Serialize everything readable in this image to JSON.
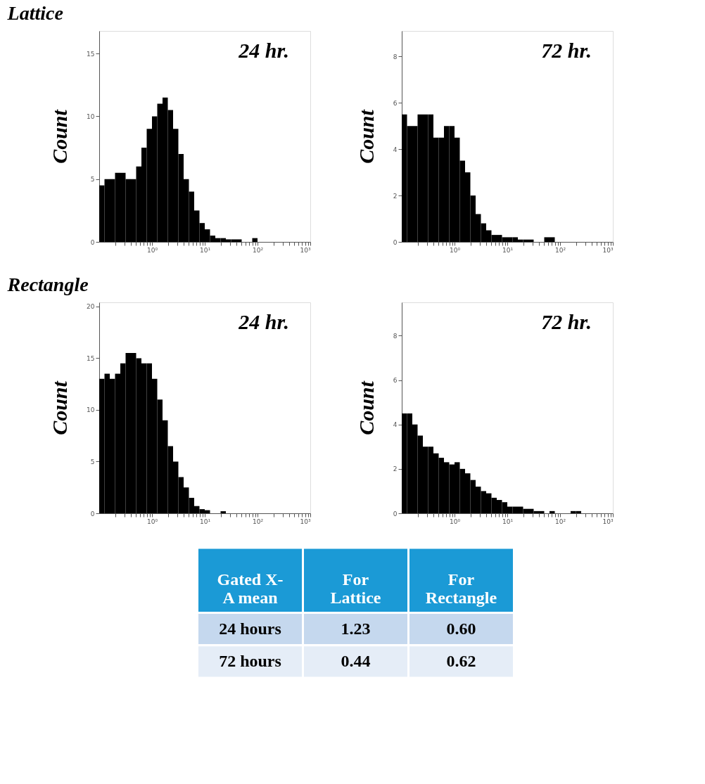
{
  "chart_data": [
    {
      "type": "histogram",
      "title": "Lattice",
      "ylabel": "Count",
      "annotations": [
        "24 hr."
      ],
      "color": "#000000",
      "log": "x",
      "grid": false,
      "xlim": [
        0.1,
        1000
      ],
      "ylim": [
        0,
        16.8
      ],
      "yticks": [
        0,
        5,
        10,
        15
      ],
      "xticks": [
        {
          "value": 0.2,
          "label": null
        },
        {
          "value": 0.3,
          "label": null
        },
        {
          "value": 0.4,
          "label": null
        },
        {
          "value": 0.5,
          "label": null
        },
        {
          "value": 0.6,
          "label": null
        },
        {
          "value": 0.7,
          "label": null
        },
        {
          "value": 0.8,
          "label": null
        },
        {
          "value": 0.9,
          "label": null
        },
        {
          "value": 1,
          "label": "10⁰"
        },
        {
          "value": 2,
          "label": null
        },
        {
          "value": 3,
          "label": null
        },
        {
          "value": 4,
          "label": null
        },
        {
          "value": 5,
          "label": null
        },
        {
          "value": 6,
          "label": null
        },
        {
          "value": 7,
          "label": null
        },
        {
          "value": 8,
          "label": null
        },
        {
          "value": 9,
          "label": null
        },
        {
          "value": 10,
          "label": "10¹"
        },
        {
          "value": 20,
          "label": null
        },
        {
          "value": 30,
          "label": null
        },
        {
          "value": 40,
          "label": null
        },
        {
          "value": 50,
          "label": null
        },
        {
          "value": 60,
          "label": null
        },
        {
          "value": 70,
          "label": null
        },
        {
          "value": 80,
          "label": null
        },
        {
          "value": 90,
          "label": null
        },
        {
          "value": 100,
          "label": "10²"
        },
        {
          "value": 200,
          "label": null
        },
        {
          "value": 300,
          "label": null
        },
        {
          "value": 400,
          "label": null
        },
        {
          "value": 500,
          "label": null
        },
        {
          "value": 600,
          "label": null
        },
        {
          "value": 700,
          "label": null
        },
        {
          "value": 800,
          "label": null
        },
        {
          "value": 900,
          "label": null
        },
        {
          "value": 1000,
          "label": "10³"
        }
      ],
      "bins": [
        0.1,
        0.1259,
        0.1585,
        0.1995,
        0.2512,
        0.3162,
        0.3981,
        0.5012,
        0.631,
        0.7943,
        1,
        1.259,
        1.585,
        1.995,
        2.512,
        3.162,
        3.981,
        5.012,
        6.31,
        7.943,
        10,
        12.59,
        15.85,
        19.95,
        25.12,
        31.62,
        39.81,
        50.12,
        63.1,
        79.43,
        100,
        125.9,
        158.5,
        199.5,
        251.2,
        316.2,
        398.1,
        501.2,
        631,
        794.3,
        1000
      ],
      "values": [
        4.5,
        5,
        5,
        5.5,
        5.5,
        5,
        5,
        6,
        7.5,
        9,
        10,
        11,
        11.5,
        10.5,
        9,
        7,
        5,
        4,
        2.5,
        1.5,
        1,
        0.5,
        0.3,
        0.3,
        0.2,
        0.2,
        0.2,
        0,
        0,
        0.3,
        0,
        0,
        0,
        0,
        0,
        0,
        0,
        0,
        0,
        0
      ]
    },
    {
      "type": "histogram",
      "ylabel": "Count",
      "annotations": [
        "72 hr."
      ],
      "color": "#000000",
      "log": "x",
      "grid": false,
      "xlim": [
        0.1,
        1000
      ],
      "ylim": [
        0,
        9.1
      ],
      "yticks": [
        0,
        2,
        4,
        6,
        8
      ],
      "xticks": [
        {
          "value": 0.2,
          "label": null
        },
        {
          "value": 0.3,
          "label": null
        },
        {
          "value": 0.4,
          "label": null
        },
        {
          "value": 0.5,
          "label": null
        },
        {
          "value": 0.6,
          "label": null
        },
        {
          "value": 0.7,
          "label": null
        },
        {
          "value": 0.8,
          "label": null
        },
        {
          "value": 0.9,
          "label": null
        },
        {
          "value": 1,
          "label": "10⁰"
        },
        {
          "value": 2,
          "label": null
        },
        {
          "value": 3,
          "label": null
        },
        {
          "value": 4,
          "label": null
        },
        {
          "value": 5,
          "label": null
        },
        {
          "value": 6,
          "label": null
        },
        {
          "value": 7,
          "label": null
        },
        {
          "value": 8,
          "label": null
        },
        {
          "value": 9,
          "label": null
        },
        {
          "value": 10,
          "label": "10¹"
        },
        {
          "value": 20,
          "label": null
        },
        {
          "value": 30,
          "label": null
        },
        {
          "value": 40,
          "label": null
        },
        {
          "value": 50,
          "label": null
        },
        {
          "value": 60,
          "label": null
        },
        {
          "value": 70,
          "label": null
        },
        {
          "value": 80,
          "label": null
        },
        {
          "value": 90,
          "label": null
        },
        {
          "value": 100,
          "label": "10²"
        },
        {
          "value": 200,
          "label": null
        },
        {
          "value": 300,
          "label": null
        },
        {
          "value": 400,
          "label": null
        },
        {
          "value": 500,
          "label": null
        },
        {
          "value": 600,
          "label": null
        },
        {
          "value": 700,
          "label": null
        },
        {
          "value": 800,
          "label": null
        },
        {
          "value": 900,
          "label": null
        },
        {
          "value": 1000,
          "label": "10³"
        }
      ],
      "bins": [
        0.1,
        0.1259,
        0.1585,
        0.1995,
        0.2512,
        0.3162,
        0.3981,
        0.5012,
        0.631,
        0.7943,
        1,
        1.259,
        1.585,
        1.995,
        2.512,
        3.162,
        3.981,
        5.012,
        6.31,
        7.943,
        10,
        12.59,
        15.85,
        19.95,
        25.12,
        31.62,
        39.81,
        50.12,
        63.1,
        79.43,
        100,
        125.9,
        158.5,
        199.5,
        251.2,
        316.2,
        398.1,
        501.2,
        631,
        794.3,
        1000
      ],
      "values": [
        5.5,
        5,
        5,
        5.5,
        5.5,
        5.5,
        4.5,
        4.5,
        5,
        5,
        4.5,
        3.5,
        3,
        2,
        1.2,
        0.8,
        0.5,
        0.3,
        0.3,
        0.2,
        0.2,
        0.2,
        0.1,
        0.1,
        0.1,
        0,
        0,
        0.2,
        0.2,
        0,
        0,
        0,
        0,
        0,
        0,
        0,
        0,
        0,
        0,
        0
      ]
    },
    {
      "type": "histogram",
      "title": "Rectangle",
      "ylabel": "Count",
      "annotations": [
        "24 hr."
      ],
      "color": "#000000",
      "log": "x",
      "grid": false,
      "xlim": [
        0.1,
        1000
      ],
      "ylim": [
        0,
        20.4
      ],
      "yticks": [
        0,
        5,
        10,
        15,
        20
      ],
      "xticks": [
        {
          "value": 0.2,
          "label": null
        },
        {
          "value": 0.3,
          "label": null
        },
        {
          "value": 0.4,
          "label": null
        },
        {
          "value": 0.5,
          "label": null
        },
        {
          "value": 0.6,
          "label": null
        },
        {
          "value": 0.7,
          "label": null
        },
        {
          "value": 0.8,
          "label": null
        },
        {
          "value": 0.9,
          "label": null
        },
        {
          "value": 1,
          "label": "10⁰"
        },
        {
          "value": 2,
          "label": null
        },
        {
          "value": 3,
          "label": null
        },
        {
          "value": 4,
          "label": null
        },
        {
          "value": 5,
          "label": null
        },
        {
          "value": 6,
          "label": null
        },
        {
          "value": 7,
          "label": null
        },
        {
          "value": 8,
          "label": null
        },
        {
          "value": 9,
          "label": null
        },
        {
          "value": 10,
          "label": "10¹"
        },
        {
          "value": 20,
          "label": null
        },
        {
          "value": 30,
          "label": null
        },
        {
          "value": 40,
          "label": null
        },
        {
          "value": 50,
          "label": null
        },
        {
          "value": 60,
          "label": null
        },
        {
          "value": 70,
          "label": null
        },
        {
          "value": 80,
          "label": null
        },
        {
          "value": 90,
          "label": null
        },
        {
          "value": 100,
          "label": "10²"
        },
        {
          "value": 200,
          "label": null
        },
        {
          "value": 300,
          "label": null
        },
        {
          "value": 400,
          "label": null
        },
        {
          "value": 500,
          "label": null
        },
        {
          "value": 600,
          "label": null
        },
        {
          "value": 700,
          "label": null
        },
        {
          "value": 800,
          "label": null
        },
        {
          "value": 900,
          "label": null
        },
        {
          "value": 1000,
          "label": "10³"
        }
      ],
      "bins": [
        0.1,
        0.1259,
        0.1585,
        0.1995,
        0.2512,
        0.3162,
        0.3981,
        0.5012,
        0.631,
        0.7943,
        1,
        1.259,
        1.585,
        1.995,
        2.512,
        3.162,
        3.981,
        5.012,
        6.31,
        7.943,
        10,
        12.59,
        15.85,
        19.95,
        25.12,
        31.62,
        39.81,
        50.12,
        63.1,
        79.43,
        100,
        125.9,
        158.5,
        199.5,
        251.2,
        316.2,
        398.1,
        501.2,
        631,
        794.3,
        1000
      ],
      "values": [
        13,
        13.5,
        13,
        13.5,
        14.5,
        15.5,
        15.5,
        15,
        14.5,
        14.5,
        13,
        11,
        9,
        6.5,
        5,
        3.5,
        2.5,
        1.5,
        0.7,
        0.4,
        0.3,
        0,
        0,
        0.2,
        0,
        0,
        0,
        0,
        0,
        0,
        0,
        0,
        0,
        0,
        0,
        0,
        0,
        0,
        0,
        0
      ]
    },
    {
      "type": "histogram",
      "ylabel": "Count",
      "annotations": [
        "72 hr."
      ],
      "color": "#000000",
      "log": "x",
      "grid": false,
      "xlim": [
        0.1,
        1000
      ],
      "ylim": [
        0,
        9.5
      ],
      "yticks": [
        0,
        2,
        4,
        6,
        8
      ],
      "xticks": [
        {
          "value": 0.2,
          "label": null
        },
        {
          "value": 0.3,
          "label": null
        },
        {
          "value": 0.4,
          "label": null
        },
        {
          "value": 0.5,
          "label": null
        },
        {
          "value": 0.6,
          "label": null
        },
        {
          "value": 0.7,
          "label": null
        },
        {
          "value": 0.8,
          "label": null
        },
        {
          "value": 0.9,
          "label": null
        },
        {
          "value": 1,
          "label": "10⁰"
        },
        {
          "value": 2,
          "label": null
        },
        {
          "value": 3,
          "label": null
        },
        {
          "value": 4,
          "label": null
        },
        {
          "value": 5,
          "label": null
        },
        {
          "value": 6,
          "label": null
        },
        {
          "value": 7,
          "label": null
        },
        {
          "value": 8,
          "label": null
        },
        {
          "value": 9,
          "label": null
        },
        {
          "value": 10,
          "label": "10¹"
        },
        {
          "value": 20,
          "label": null
        },
        {
          "value": 30,
          "label": null
        },
        {
          "value": 40,
          "label": null
        },
        {
          "value": 50,
          "label": null
        },
        {
          "value": 60,
          "label": null
        },
        {
          "value": 70,
          "label": null
        },
        {
          "value": 80,
          "label": null
        },
        {
          "value": 90,
          "label": null
        },
        {
          "value": 100,
          "label": "10²"
        },
        {
          "value": 200,
          "label": null
        },
        {
          "value": 300,
          "label": null
        },
        {
          "value": 400,
          "label": null
        },
        {
          "value": 500,
          "label": null
        },
        {
          "value": 600,
          "label": null
        },
        {
          "value": 700,
          "label": null
        },
        {
          "value": 800,
          "label": null
        },
        {
          "value": 900,
          "label": null
        },
        {
          "value": 1000,
          "label": "10³"
        }
      ],
      "bins": [
        0.1,
        0.1259,
        0.1585,
        0.1995,
        0.2512,
        0.3162,
        0.3981,
        0.5012,
        0.631,
        0.7943,
        1,
        1.259,
        1.585,
        1.995,
        2.512,
        3.162,
        3.981,
        5.012,
        6.31,
        7.943,
        10,
        12.59,
        15.85,
        19.95,
        25.12,
        31.62,
        39.81,
        50.12,
        63.1,
        79.43,
        100,
        125.9,
        158.5,
        199.5,
        251.2,
        316.2,
        398.1,
        501.2,
        631,
        794.3,
        1000
      ],
      "values": [
        4.5,
        4.5,
        4,
        3.5,
        3,
        3,
        2.7,
        2.5,
        2.3,
        2.2,
        2.3,
        2,
        1.8,
        1.5,
        1.2,
        1,
        0.9,
        0.7,
        0.6,
        0.5,
        0.3,
        0.3,
        0.3,
        0.2,
        0.2,
        0.1,
        0.1,
        0,
        0.1,
        0,
        0,
        0,
        0.1,
        0.1,
        0,
        0,
        0,
        0,
        0,
        0
      ]
    },
    {
      "type": "other",
      "title": "Gated X-A mean",
      "categories": [
        "For Lattice",
        "For Rectangle"
      ],
      "y_categories": [
        "24 hours",
        "72 hours"
      ],
      "cells": [
        [
          "1.23",
          "0.60"
        ],
        [
          "0.44",
          "0.62"
        ]
      ]
    }
  ]
}
